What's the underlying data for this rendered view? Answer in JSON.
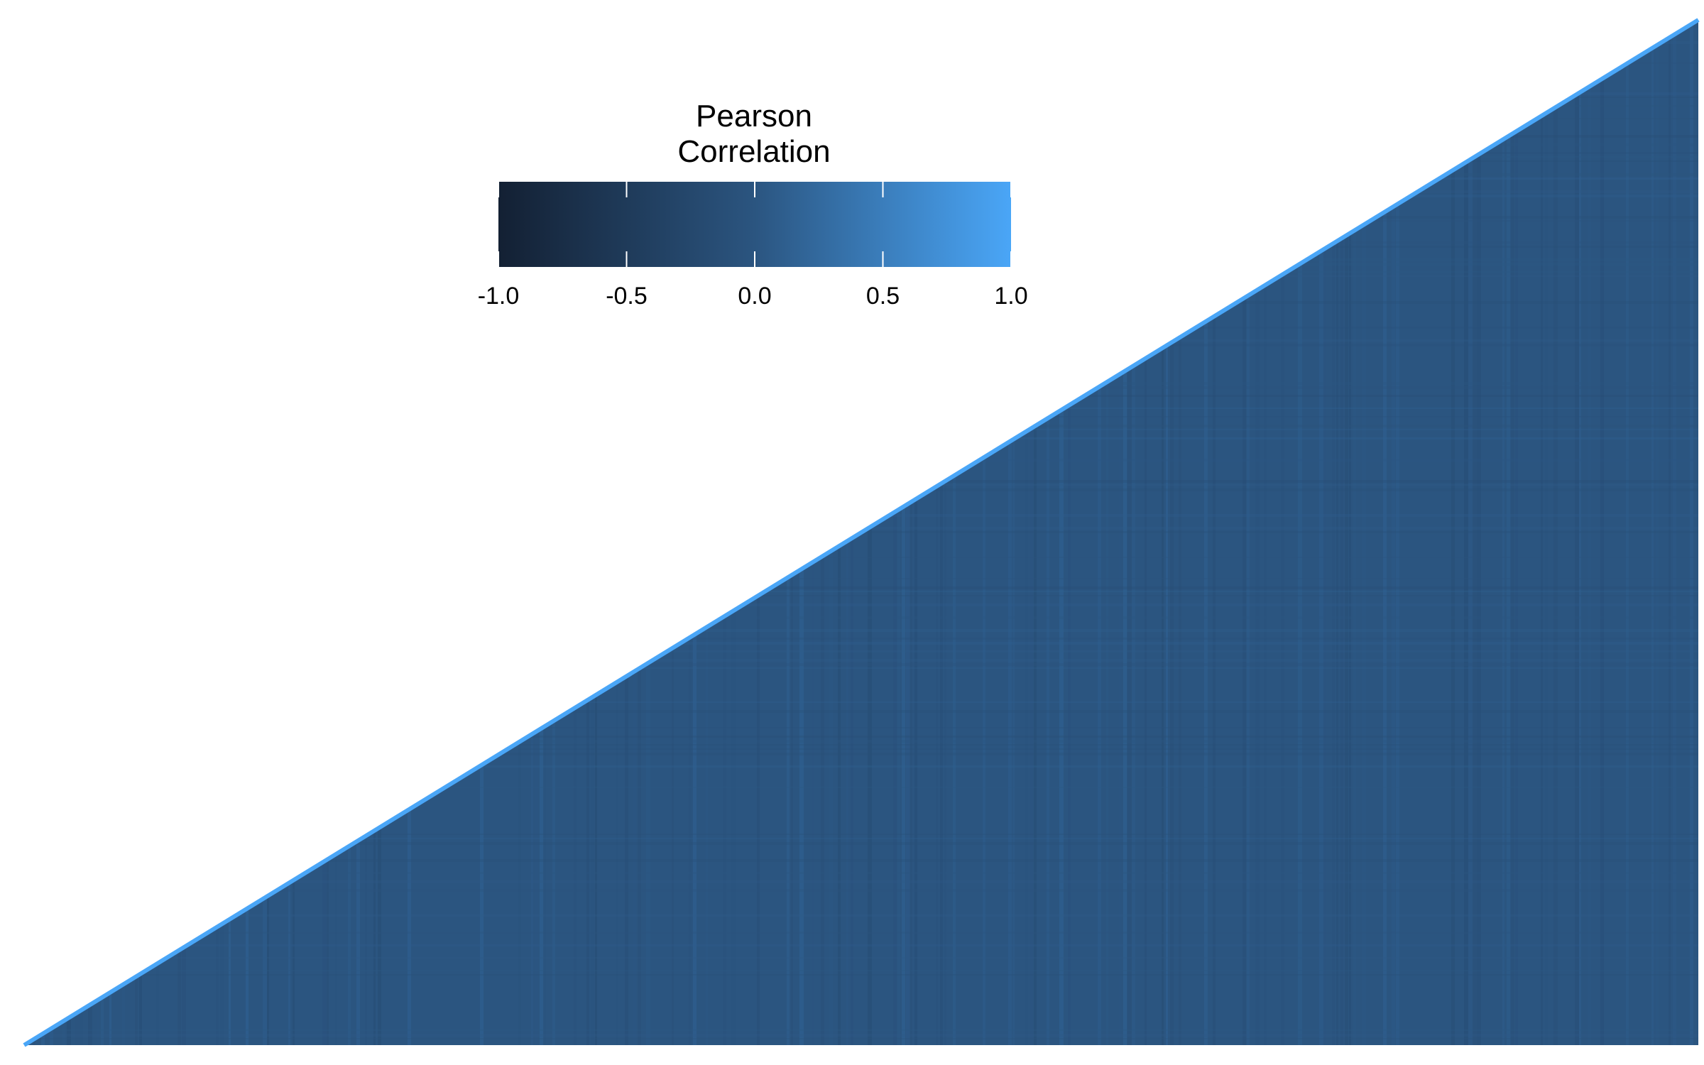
{
  "chart_data": {
    "type": "heatmap",
    "shape": "lower-triangle",
    "legend": {
      "title_line1": "Pearson",
      "title_line2": "Correlation",
      "min": -1.0,
      "max": 1.0,
      "ticks": [
        -1.0,
        -0.5,
        0.0,
        0.5,
        1.0
      ],
      "tick_labels": [
        "-1.0",
        "-0.5",
        "0.0",
        "0.5",
        "1.0"
      ],
      "placement": "top-center",
      "colors": {
        "low": "#132033",
        "mid": "#2b5580",
        "high": "#4aa6f7"
      }
    },
    "summary": {
      "typical_value": 0.0,
      "diagonal_value": 1.0
    }
  }
}
